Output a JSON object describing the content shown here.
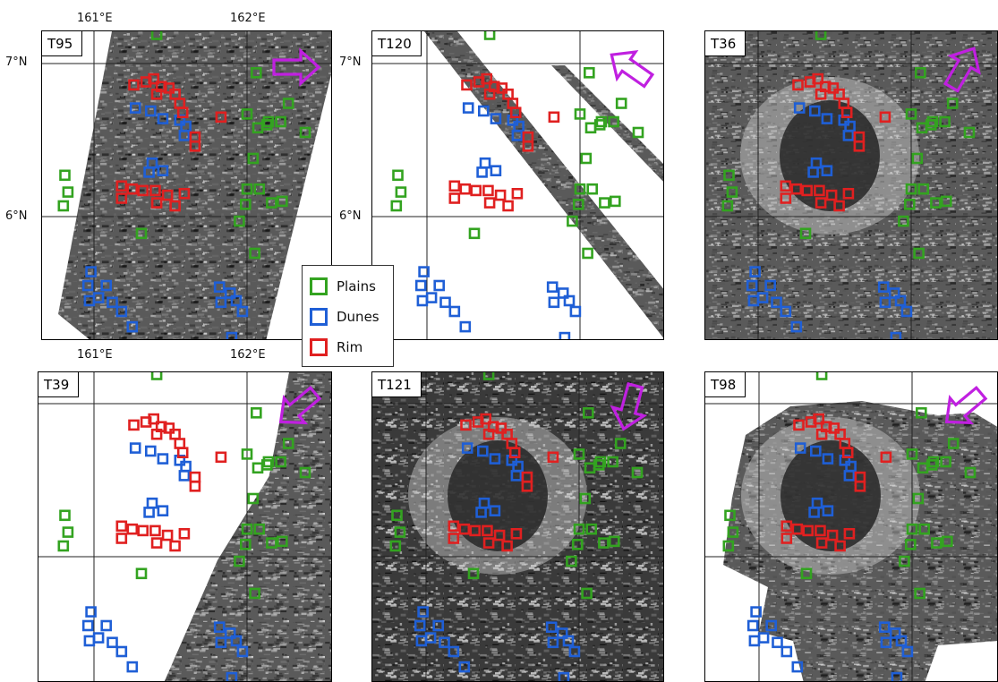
{
  "panels": [
    {
      "label": "T95",
      "coverage": "strip-right",
      "arrow_dir": "east"
    },
    {
      "label": "T120",
      "coverage": "diagonal-bands",
      "arrow_dir": "northwest"
    },
    {
      "label": "T36",
      "coverage": "full",
      "arrow_dir": "northeast"
    },
    {
      "label": "T39",
      "coverage": "strip-left",
      "arrow_dir": "southwest"
    },
    {
      "label": "T121",
      "coverage": "full",
      "arrow_dir": "south"
    },
    {
      "label": "T98",
      "coverage": "partial",
      "arrow_dir": "southwest"
    }
  ],
  "axes": {
    "lon_top": [
      "161°E",
      "162°E"
    ],
    "lon_mid": [
      "161°E",
      "162°E"
    ],
    "lat_left": [
      "7°N",
      "6°N"
    ],
    "lat_mid": [
      "7°N",
      "6°N"
    ]
  },
  "legend": [
    {
      "label": "Plains",
      "color": "#33a320"
    },
    {
      "label": "Dunes",
      "color": "#1f5fd6"
    },
    {
      "label": "Rim",
      "color": "#e02020"
    }
  ],
  "arrow_color": "#c020e0",
  "marker_colors": {
    "plains": "#33a320",
    "dunes": "#1f5fd6",
    "rim": "#e02020"
  },
  "sample_points": {
    "plains": [
      [
        161.41,
        7.19
      ],
      [
        162.06,
        6.94
      ],
      [
        162.27,
        6.74
      ],
      [
        162.0,
        6.67
      ],
      [
        162.14,
        6.62
      ],
      [
        162.22,
        6.62
      ],
      [
        162.07,
        6.58
      ],
      [
        162.13,
        6.6
      ],
      [
        162.38,
        6.55
      ],
      [
        162.04,
        6.38
      ],
      [
        160.81,
        6.27
      ],
      [
        160.83,
        6.16
      ],
      [
        160.8,
        6.07
      ],
      [
        162.0,
        6.18
      ],
      [
        162.08,
        6.18
      ],
      [
        162.16,
        6.09
      ],
      [
        162.23,
        6.1
      ],
      [
        161.99,
        6.08
      ],
      [
        161.95,
        5.97
      ],
      [
        161.31,
        5.89
      ],
      [
        162.05,
        5.76
      ]
    ],
    "dunes": [
      [
        161.27,
        6.71
      ],
      [
        161.37,
        6.69
      ],
      [
        161.45,
        6.64
      ],
      [
        161.56,
        6.63
      ],
      [
        161.6,
        6.59
      ],
      [
        161.59,
        6.53
      ],
      [
        161.38,
        6.35
      ],
      [
        161.36,
        6.29
      ],
      [
        161.45,
        6.3
      ],
      [
        160.98,
        5.64
      ],
      [
        160.96,
        5.55
      ],
      [
        161.08,
        5.55
      ],
      [
        160.97,
        5.45
      ],
      [
        161.03,
        5.47
      ],
      [
        161.12,
        5.44
      ],
      [
        161.18,
        5.38
      ],
      [
        161.25,
        5.28
      ],
      [
        161.82,
        5.54
      ],
      [
        161.89,
        5.5
      ],
      [
        161.83,
        5.44
      ],
      [
        161.93,
        5.45
      ],
      [
        161.97,
        5.38
      ],
      [
        161.9,
        5.21
      ]
    ],
    "rim": [
      [
        161.26,
        6.86
      ],
      [
        161.34,
        6.88
      ],
      [
        161.39,
        6.9
      ],
      [
        161.44,
        6.85
      ],
      [
        161.49,
        6.84
      ],
      [
        161.53,
        6.8
      ],
      [
        161.56,
        6.74
      ],
      [
        161.41,
        6.8
      ],
      [
        161.58,
        6.68
      ],
      [
        161.83,
        6.65
      ],
      [
        161.66,
        6.52
      ],
      [
        161.66,
        6.46
      ],
      [
        161.18,
        6.2
      ],
      [
        161.25,
        6.18
      ],
      [
        161.32,
        6.17
      ],
      [
        161.18,
        6.12
      ],
      [
        161.4,
        6.17
      ],
      [
        161.48,
        6.14
      ],
      [
        161.41,
        6.09
      ],
      [
        161.59,
        6.15
      ],
      [
        161.53,
        6.07
      ]
    ]
  }
}
